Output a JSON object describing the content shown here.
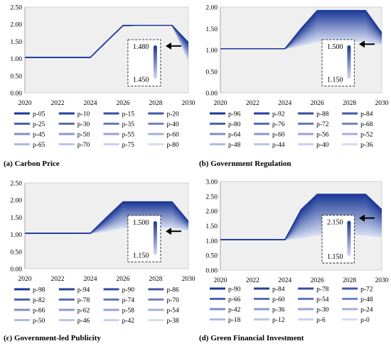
{
  "chart_data": [
    {
      "type": "area",
      "caption": "(a) Carbon Price",
      "x": [
        2020,
        2021,
        2022,
        2023,
        2024,
        2025,
        2026,
        2027,
        2028,
        2029,
        2030
      ],
      "xticks": [
        "2020",
        "2022",
        "2024",
        "2026",
        "2028",
        "2030"
      ],
      "yticks": [
        "0.00",
        "0.50",
        "1.00",
        "1.50",
        "2.00",
        "2.50"
      ],
      "ylim": [
        0,
        2.5
      ],
      "band": {
        "upper": [
          1.03,
          1.03,
          1.03,
          1.03,
          1.03,
          1.5,
          1.96,
          1.97,
          1.97,
          1.97,
          1.47
        ],
        "lower": [
          1.03,
          1.03,
          1.03,
          1.03,
          1.03,
          1.5,
          1.96,
          1.97,
          1.97,
          1.97,
          0.95
        ]
      },
      "inset": {
        "top": "1.480",
        "bottom": "1.450"
      },
      "legend": [
        "p-05",
        "p-10",
        "p-15",
        "p-20",
        "p-25",
        "p-30",
        "p-35",
        "p-40",
        "p-45",
        "p-50",
        "p-55",
        "p-60",
        "p-65",
        "p-70",
        "p-75",
        "p-80"
      ]
    },
    {
      "type": "area",
      "caption": "(b) Government Regulation",
      "x": [
        2020,
        2021,
        2022,
        2023,
        2024,
        2025,
        2026,
        2027,
        2028,
        2029,
        2030
      ],
      "xticks": [
        "2020",
        "2022",
        "2024",
        "2026",
        "2028",
        "2030"
      ],
      "yticks": [
        "0.00",
        "0.50",
        "1.00",
        "1.50",
        "2.00"
      ],
      "ylim": [
        0,
        2.0
      ],
      "band": {
        "upper": [
          1.03,
          1.03,
          1.03,
          1.03,
          1.03,
          1.5,
          1.92,
          1.92,
          1.92,
          1.92,
          1.4
        ],
        "lower": [
          1.03,
          1.03,
          1.03,
          1.03,
          1.03,
          1.1,
          1.2,
          1.2,
          1.2,
          1.2,
          1.12
        ]
      },
      "inset": {
        "top": "1.500",
        "bottom": "1.150"
      },
      "legend": [
        "p-96",
        "p-92",
        "p-88",
        "p-84",
        "p-80",
        "p-76",
        "p-72",
        "p-68",
        "p-64",
        "p-60",
        "p-56",
        "p-52",
        "p-48",
        "p-44",
        "p-40",
        "p-36"
      ]
    },
    {
      "type": "area",
      "caption": "(c) Government-led Publicity",
      "x": [
        2020,
        2021,
        2022,
        2023,
        2024,
        2025,
        2026,
        2027,
        2028,
        2029,
        2030
      ],
      "xticks": [
        "2020",
        "2022",
        "2024",
        "2026",
        "2028",
        "2030"
      ],
      "yticks": [
        "0.00",
        "0.50",
        "1.00",
        "1.50",
        "2.00",
        "2.50"
      ],
      "ylim": [
        0,
        2.5
      ],
      "band": {
        "upper": [
          1.03,
          1.03,
          1.03,
          1.03,
          1.03,
          1.5,
          1.95,
          1.95,
          1.95,
          1.95,
          1.38
        ],
        "lower": [
          1.03,
          1.03,
          1.03,
          1.03,
          1.03,
          1.1,
          1.2,
          1.2,
          1.2,
          1.2,
          1.12
        ]
      },
      "inset": {
        "top": "1.500",
        "bottom": "1.150"
      },
      "legend": [
        "p-98",
        "p-94",
        "p-90",
        "p-86",
        "p-82",
        "p-78",
        "p-74",
        "p-70",
        "p-66",
        "p-62",
        "p-58",
        "p-54",
        "p-50",
        "p-46",
        "p-42",
        "p-38"
      ]
    },
    {
      "type": "area",
      "caption": "(d) Green Financial Investment",
      "x": [
        2020,
        2021,
        2022,
        2023,
        2024,
        2025,
        2026,
        2027,
        2028,
        2029,
        2030
      ],
      "xticks": [
        "2020",
        "2022",
        "2024",
        "2026",
        "2028",
        "2030"
      ],
      "yticks": [
        "0.00",
        "0.50",
        "1.00",
        "1.50",
        "2.00",
        "2.50",
        "3.00"
      ],
      "ylim": [
        0,
        3.0
      ],
      "band": {
        "upper": [
          1.03,
          1.03,
          1.03,
          1.03,
          1.03,
          2.05,
          2.57,
          2.57,
          2.57,
          2.57,
          2.05
        ],
        "lower": [
          1.03,
          1.03,
          1.03,
          1.03,
          1.03,
          1.1,
          1.2,
          1.2,
          1.2,
          1.2,
          1.12
        ]
      },
      "inset": {
        "top": "2.150",
        "bottom": "1.150"
      },
      "legend": [
        "p-90",
        "p-84",
        "p-78",
        "p-72",
        "p-66",
        "p-60",
        "p-54",
        "p-48",
        "p-42",
        "p-36",
        "p-30",
        "p-24",
        "p-18",
        "p-12",
        "p-6",
        "p-0"
      ]
    }
  ],
  "colors": {
    "dark": "#1a3796",
    "light": "#d4dcf1",
    "plot_bg": "#efefef"
  }
}
